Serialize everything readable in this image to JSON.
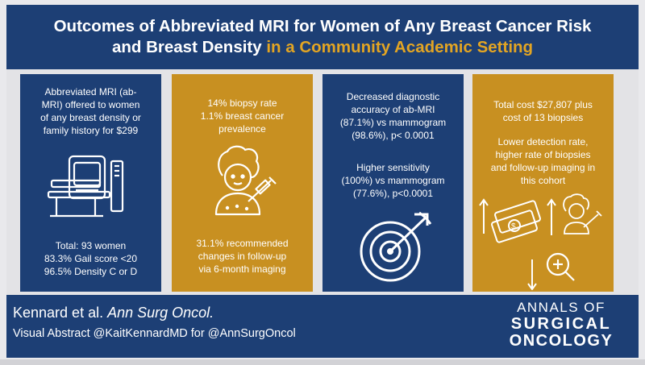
{
  "header": {
    "title_line1": "Outcomes of Abbreviated MRI for Women of Any Breast Cancer Risk",
    "title_line2_white": "and Breast Density",
    "title_line2_gold": "in a Community Academic Setting"
  },
  "panels": [
    {
      "top_text": "Abbreviated MRI (ab-\nMRI) offered to women\nof any breast density or\nfamily history for $299",
      "bottom_text": "Total: 93 women\n83.3% Gail score <20\n96.5% Density C or D",
      "icon": "mri-scanner-icon"
    },
    {
      "top_text": "14% biopsy rate\n1.1% breast cancer\nprevalence",
      "bottom_text": "31.1% recommended\nchanges in follow-up\nvia 6-month imaging",
      "icon": "patient-biopsy-icon"
    },
    {
      "top_text": "Decreased diagnostic\naccuracy of ab-MRI\n(87.1%) vs mammogram\n(98.6%), p< 0.0001",
      "mid_text": "Higher sensitivity\n(100%) vs mammogram\n(77.6%), p<0.0001",
      "icon": "target-icon"
    },
    {
      "top_text": "Total cost $27,807 plus\ncost of 13 biopsies",
      "mid_text": "Lower detection rate,\nhigher rate of biopsies\nand follow-up imaging in\nthis cohort",
      "icons": [
        "money-icon",
        "patient-biopsy-icon",
        "magnifier-icon"
      ]
    }
  ],
  "footer": {
    "authors": "Kennard et al.",
    "journal": "Ann Surg Oncol.",
    "visual_abstract": "Visual Abstract @KaitKennardMD for @AnnSurgOncol",
    "logo_line1": "ANNALS OF",
    "logo_line2": "SURGICAL",
    "logo_line3": "ONCOLOGY"
  },
  "colors": {
    "navy": "#1d3f75",
    "gold": "#c89021",
    "title_gold": "#e3a523",
    "icon_fill": "#c89021"
  }
}
